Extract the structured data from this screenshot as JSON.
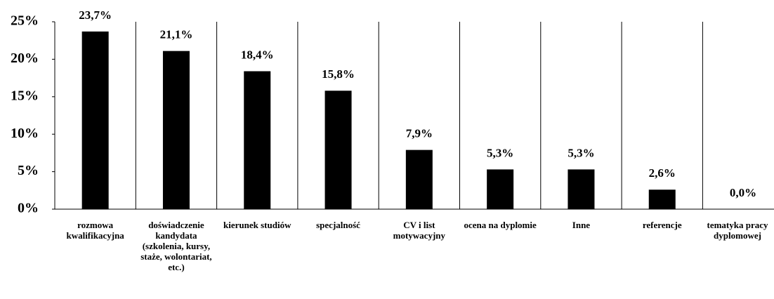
{
  "chart_data": {
    "type": "bar",
    "categories": [
      "rozmowa kwalifikacyjna",
      "doświadczenie kandydata (szkolenia, kursy, staże, wolontariat, etc.)",
      "kierunek studiów",
      "specjalność",
      "CV i list motywacyjny",
      "ocena na dyplomie",
      "Inne",
      "referencje",
      "tematyka pracy dyplomowej"
    ],
    "values": [
      23.7,
      21.1,
      18.4,
      15.8,
      7.9,
      5.3,
      5.3,
      2.6,
      0.0
    ],
    "value_labels": [
      "23,7%",
      "21,1%",
      "18,4%",
      "15,8%",
      "7,9%",
      "5,3%",
      "5,3%",
      "2,6%",
      "0,0%"
    ],
    "color": "#000000",
    "ylim": [
      0,
      25
    ],
    "yticks": [
      {
        "value": 0,
        "label": "0%"
      },
      {
        "value": 5,
        "label": "5%"
      },
      {
        "value": 10,
        "label": "10%"
      },
      {
        "value": 15,
        "label": "15%"
      },
      {
        "value": 20,
        "label": "20%"
      },
      {
        "value": 25,
        "label": "25%"
      }
    ],
    "grid": false
  }
}
